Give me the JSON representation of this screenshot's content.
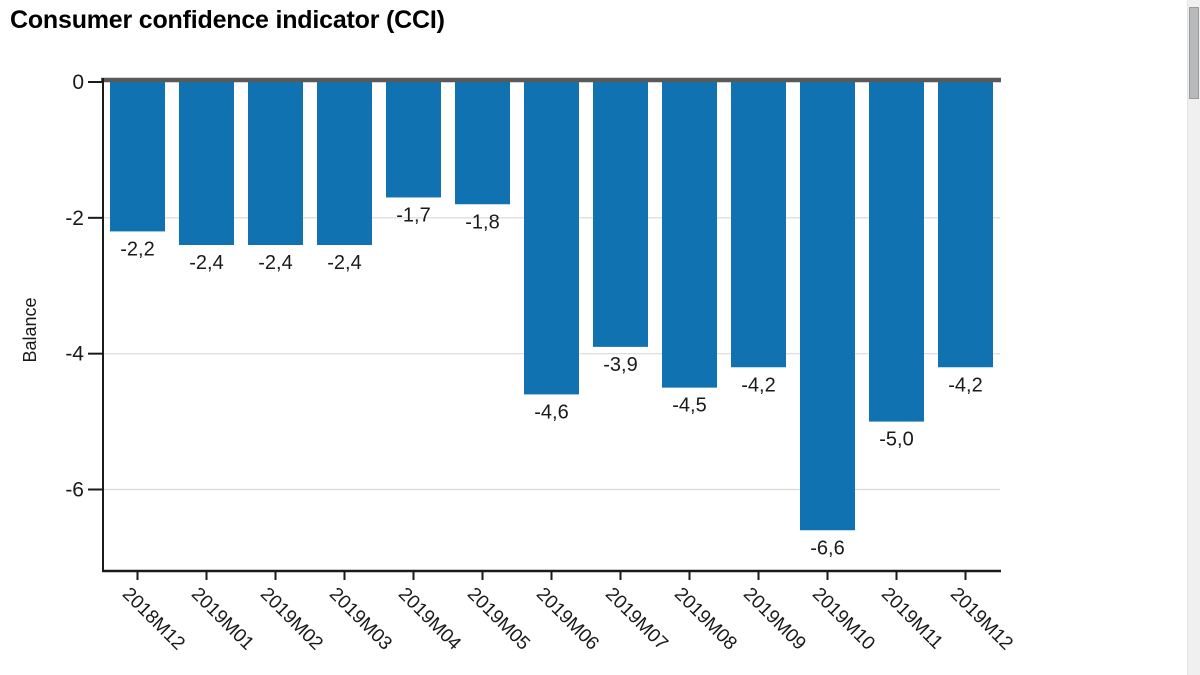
{
  "chart_data": {
    "type": "bar",
    "title": "Consumer confidence indicator (CCI)",
    "xlabel": "",
    "ylabel": "Balance",
    "categories": [
      "2018M12",
      "2019M01",
      "2019M02",
      "2019M03",
      "2019M04",
      "2019M05",
      "2019M06",
      "2019M07",
      "2019M08",
      "2019M09",
      "2019M10",
      "2019M11",
      "2019M12"
    ],
    "values": [
      -2.2,
      -2.4,
      -2.4,
      -2.4,
      -1.7,
      -1.8,
      -4.6,
      -3.9,
      -4.5,
      -4.2,
      -6.6,
      -5.0,
      -4.2
    ],
    "value_labels": [
      "-2,2",
      "-2,4",
      "-2,4",
      "-2,4",
      "-1,7",
      "-1,8",
      "-4,6",
      "-3,9",
      "-4,5",
      "-4,2",
      "-6,6",
      "-5,0",
      "-4,2"
    ],
    "yticks": [
      0,
      -2,
      -4,
      -6
    ],
    "ytick_labels": [
      "0",
      "-2",
      "-4",
      "-6"
    ],
    "ylim": [
      0,
      -7.2
    ],
    "grid": true,
    "legend": "none",
    "colors": {
      "bar": "#1072b0",
      "zero_line": "#58595b",
      "gridline": "#d9d9d9",
      "axis": "#1a1a1a",
      "text": "#1a1a1a"
    }
  }
}
